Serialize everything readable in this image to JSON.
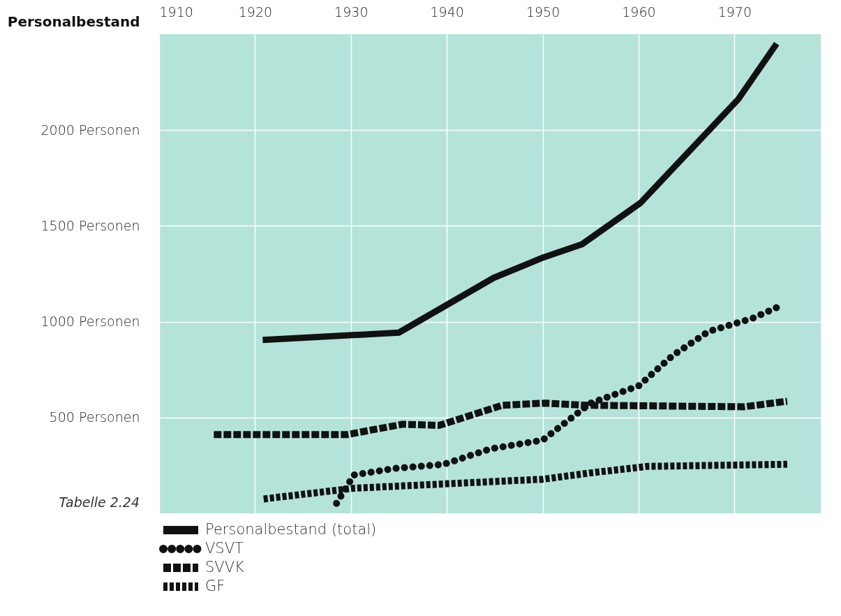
{
  "chart_data": {
    "type": "line",
    "ylabel": "Personalbestand",
    "annotations": [
      "Tabelle 2.24"
    ],
    "xlim": [
      1910,
      1979
    ],
    "xticks": [
      1910,
      1920,
      1930,
      1940,
      1950,
      1960,
      1970
    ],
    "ylim": [
      0,
      2500
    ],
    "yticks": [
      {
        "value": 500,
        "label": "500 Personen"
      },
      {
        "value": 1000,
        "label": "1000 Personen"
      },
      {
        "value": 1500,
        "label": "1500 Personen"
      },
      {
        "value": 2000,
        "label": "2000 Personen"
      }
    ],
    "grid": true,
    "legend": "bottom left",
    "marker": "none",
    "series": [
      {
        "name": "Personalbestand (total)",
        "color": "#111111",
        "line_style": "solid",
        "x": [
          1920.8,
          1935.0,
          1944.9,
          1950.1,
          1954.1,
          1960.2,
          1970.4,
          1974.4
        ],
        "values": [
          905,
          943,
          1229,
          1336,
          1404,
          1620,
          2161,
          2451
        ]
      },
      {
        "name": "VSVT",
        "color": "#111111",
        "line_style": "dotted",
        "x": [
          1928.5,
          1930.3,
          1934.5,
          1939.7,
          1944.5,
          1950.0,
          1955.0,
          1960.0,
          1963.6,
          1967.3,
          1971.9,
          1975.0
        ],
        "values": [
          52,
          200,
          234,
          256,
          336,
          382,
          575,
          665,
          825,
          949,
          1018,
          1087
        ]
      },
      {
        "name": "SVVK",
        "color": "#111111",
        "line_style": "dashed",
        "x": [
          1915.7,
          1929.6,
          1935.4,
          1939.2,
          1945.8,
          1950.2,
          1954.5,
          1971.0,
          1975.5
        ],
        "values": [
          411,
          411,
          465,
          459,
          564,
          575,
          564,
          556,
          585
        ]
      },
      {
        "name": "GF",
        "color": "#111111",
        "line_style": "dashed",
        "x": [
          1920.9,
          1930.3,
          1950.0,
          1955.0,
          1960.9,
          1975.5
        ],
        "values": [
          75,
          131,
          178,
          211,
          245,
          256
        ]
      }
    ]
  }
}
